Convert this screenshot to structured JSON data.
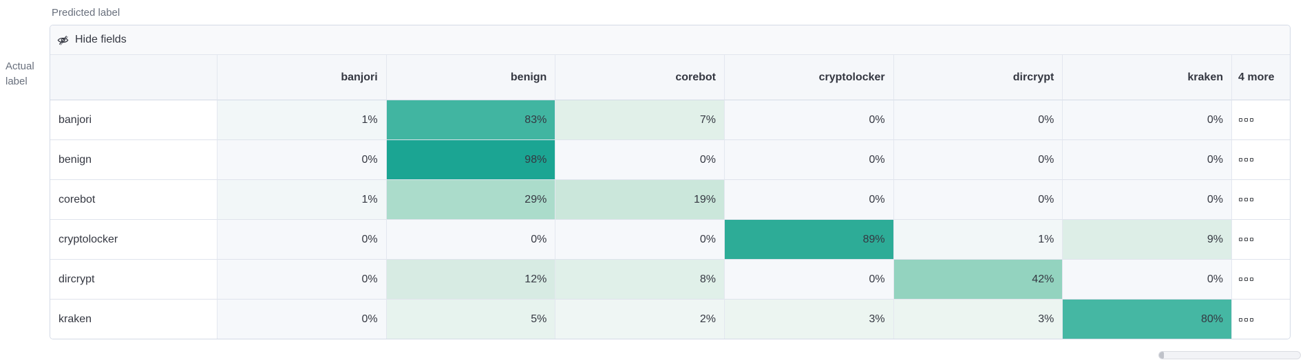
{
  "axes": {
    "predicted": "Predicted label",
    "actual_line1": "Actual",
    "actual_line2": "label"
  },
  "toolbar": {
    "hide_fields_label": "Hide fields"
  },
  "icons": {
    "hide_fields": "eye-closed-icon",
    "row_actions": "boxes-horizontal-icon"
  },
  "matrix": {
    "columns": [
      "banjori",
      "benign",
      "corebot",
      "cryptolocker",
      "dircrypt",
      "kraken"
    ],
    "more_column_label": "4 more",
    "rows": [
      {
        "label": "banjori",
        "cells": [
          {
            "text": "1%",
            "bg": "#f2f7f8"
          },
          {
            "text": "83%",
            "bg": "#41b5a1"
          },
          {
            "text": "7%",
            "bg": "#e1f0e9"
          },
          {
            "text": "0%",
            "bg": "#f6f8fb"
          },
          {
            "text": "0%",
            "bg": "#f6f8fb"
          },
          {
            "text": "0%",
            "bg": "#f6f8fb"
          }
        ]
      },
      {
        "label": "benign",
        "cells": [
          {
            "text": "0%",
            "bg": "#f6f8fb"
          },
          {
            "text": "98%",
            "bg": "#1ba593"
          },
          {
            "text": "0%",
            "bg": "#f6f8fb"
          },
          {
            "text": "0%",
            "bg": "#f6f8fb"
          },
          {
            "text": "0%",
            "bg": "#f6f8fb"
          },
          {
            "text": "0%",
            "bg": "#f6f8fb"
          }
        ]
      },
      {
        "label": "corebot",
        "cells": [
          {
            "text": "1%",
            "bg": "#f2f7f8"
          },
          {
            "text": "29%",
            "bg": "#abdccb"
          },
          {
            "text": "19%",
            "bg": "#cbe7db"
          },
          {
            "text": "0%",
            "bg": "#f6f8fb"
          },
          {
            "text": "0%",
            "bg": "#f6f8fb"
          },
          {
            "text": "0%",
            "bg": "#f6f8fb"
          }
        ]
      },
      {
        "label": "cryptolocker",
        "cells": [
          {
            "text": "0%",
            "bg": "#f6f8fb"
          },
          {
            "text": "0%",
            "bg": "#f6f8fb"
          },
          {
            "text": "0%",
            "bg": "#f6f8fb"
          },
          {
            "text": "89%",
            "bg": "#2dac97"
          },
          {
            "text": "1%",
            "bg": "#f2f7f8"
          },
          {
            "text": "9%",
            "bg": "#ddeee7"
          }
        ]
      },
      {
        "label": "dircrypt",
        "cells": [
          {
            "text": "0%",
            "bg": "#f6f8fb"
          },
          {
            "text": "12%",
            "bg": "#d7ebe3"
          },
          {
            "text": "8%",
            "bg": "#e0f0e9"
          },
          {
            "text": "0%",
            "bg": "#f6f8fb"
          },
          {
            "text": "42%",
            "bg": "#93d3bf"
          },
          {
            "text": "0%",
            "bg": "#f6f8fb"
          }
        ]
      },
      {
        "label": "kraken",
        "cells": [
          {
            "text": "0%",
            "bg": "#f6f8fb"
          },
          {
            "text": "5%",
            "bg": "#e7f3ee"
          },
          {
            "text": "2%",
            "bg": "#eff6f4"
          },
          {
            "text": "3%",
            "bg": "#ecf5f1"
          },
          {
            "text": "3%",
            "bg": "#ecf5f1"
          },
          {
            "text": "80%",
            "bg": "#45b7a3"
          }
        ]
      }
    ]
  },
  "colors": {
    "accent_teal": "#209f8b",
    "zero_cell_bg": "#f6f8fb",
    "header_bg": "#f5f7fa",
    "toolbar_bg": "#f8f9fb",
    "outer_border": "#d3dae6",
    "inner_border": "#e3e7ef",
    "text": "#343741",
    "subdued_text": "#69707d",
    "scrollbar_track": "#f2f3f6",
    "scrollbar_thumb": "#bfc2c9"
  }
}
